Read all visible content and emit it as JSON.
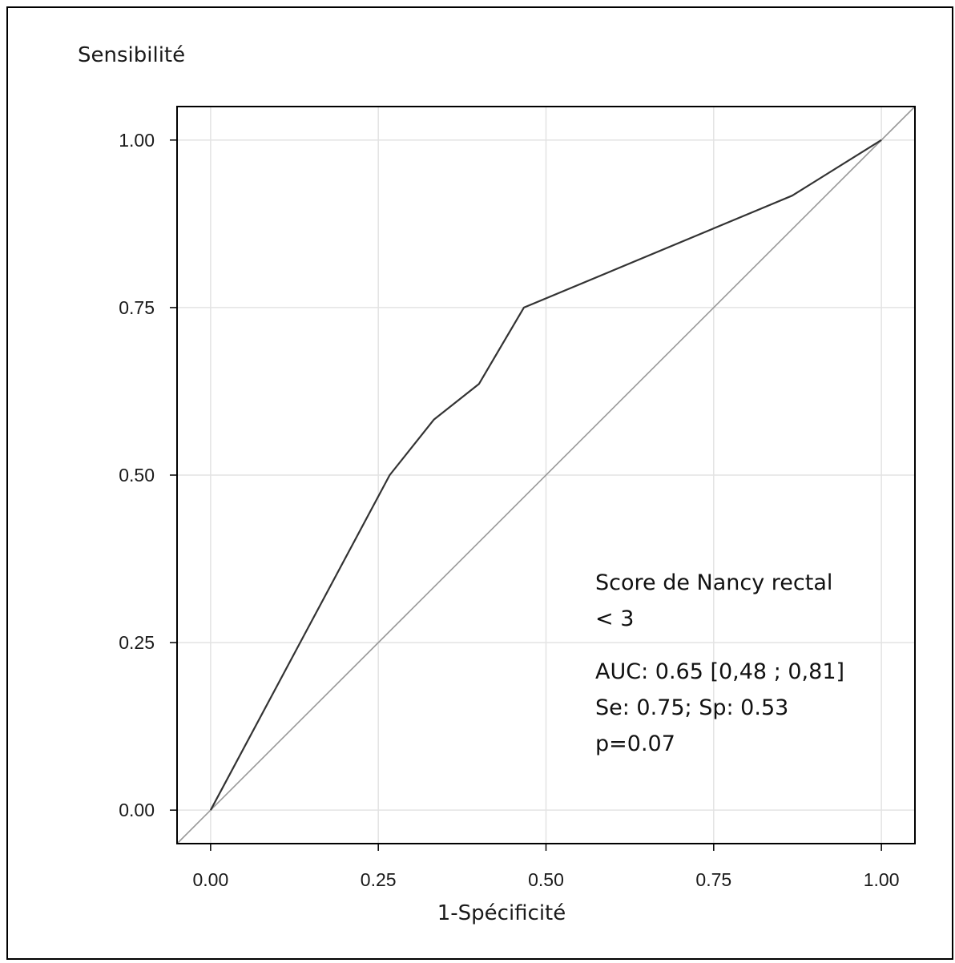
{
  "chart_data": {
    "type": "line",
    "ylabel": "Sensibilité",
    "xlabel": "1-Spécificité",
    "xlim": [
      -0.05,
      1.05
    ],
    "ylim": [
      -0.05,
      1.05
    ],
    "x_ticks": [
      "0.00",
      "0.25",
      "0.50",
      "0.75",
      "1.00"
    ],
    "y_ticks": [
      "0.00",
      "0.25",
      "0.50",
      "0.75",
      "1.00"
    ],
    "grid": true,
    "series": [
      {
        "x": [
          0.0,
          0.267,
          0.333,
          0.4,
          0.467,
          0.867,
          1.0
        ],
        "y": [
          0.0,
          0.5,
          0.583,
          0.636,
          0.75,
          0.917,
          1.0
        ],
        "color": "#333333"
      },
      {
        "x": [
          -0.05,
          1.05
        ],
        "y": [
          -0.05,
          1.05
        ],
        "color": "#999999"
      }
    ],
    "annotation": [
      "Score de Nancy rectal",
      "< 3",
      "AUC: 0.65 [0,48 ; 0,81]",
      "Se: 0.75; Sp: 0.53",
      "p=0.07"
    ]
  }
}
